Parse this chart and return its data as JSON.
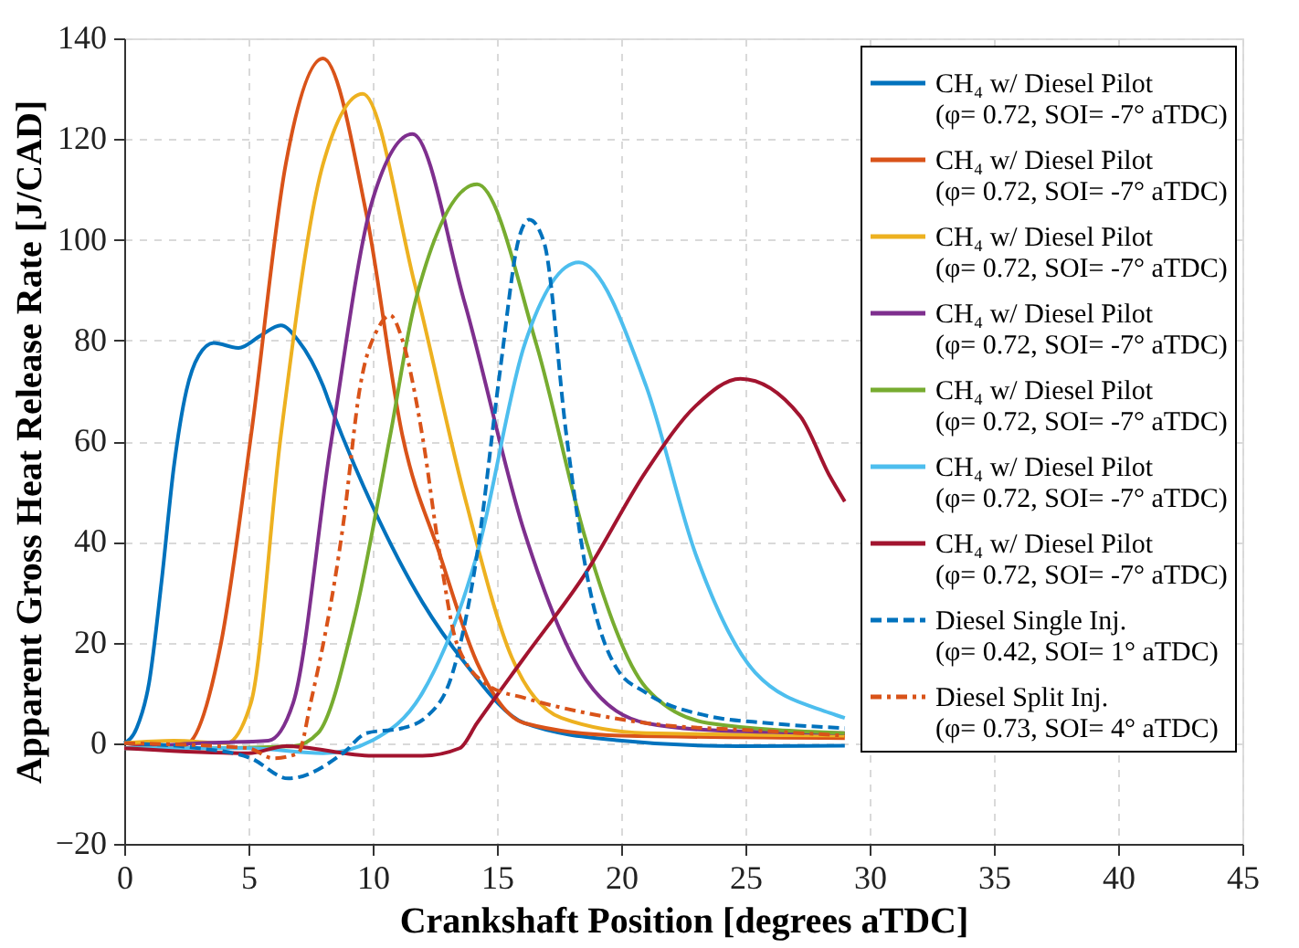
{
  "chart_data": {
    "type": "line",
    "xlabel": "Crankshaft Position [degrees aTDC]",
    "ylabel": "Apparent Gross Heat Release Rate [J/CAD]",
    "xlim": [
      0,
      45
    ],
    "xticks": [
      0,
      5,
      10,
      15,
      20,
      25,
      30,
      35,
      40,
      45
    ],
    "ylim": [
      -20,
      140
    ],
    "yticks": [
      -20,
      0,
      20,
      40,
      60,
      80,
      100,
      120,
      140
    ],
    "grid": true,
    "legend": "top right",
    "marker": "none",
    "series": [
      {
        "name": "CH₄ w/ Diesel Pilot\n(φ= 0.72, SOI= -7° aTDC)",
        "color": "#0072bd",
        "line_style": "solid",
        "x": [
          0,
          0.5,
          1,
          1.5,
          2,
          2.5,
          3,
          3.6,
          4.6,
          5.5,
          6.3,
          7,
          8,
          8.3,
          10,
          12,
          13.7,
          16.1,
          19.8,
          24.7,
          29
        ],
        "values": [
          0,
          3,
          12,
          32,
          55,
          70,
          77,
          79.5,
          78.5,
          81,
          83,
          80,
          71,
          67,
          47,
          28,
          16,
          4,
          0.6,
          -0.6,
          -0.5
        ]
      },
      {
        "name": "CH₄ w/ Diesel Pilot\n(φ= 0.72, SOI= -7° aTDC)",
        "color": "#d95319",
        "line_style": "solid",
        "x": [
          0,
          1,
          2,
          2.6,
          3.9,
          5.1,
          6.5,
          8,
          9.75,
          11.2,
          12.7,
          14.2,
          16.1,
          20,
          29
        ],
        "values": [
          0,
          -0.5,
          -1,
          0,
          20,
          61,
          115,
          136,
          105,
          61,
          37.5,
          16,
          4,
          1.5,
          1
        ]
      },
      {
        "name": "CH₄ w/ Diesel Pilot\n(φ= 0.72, SOI= -7° aTDC)",
        "color": "#edb120",
        "line_style": "solid",
        "x": [
          0,
          2,
          4.1,
          5.1,
          6.3,
          8,
          9.6,
          11.7,
          13.7,
          15.6,
          17.6,
          21,
          29
        ],
        "values": [
          0,
          0.5,
          0,
          8,
          61,
          115,
          129,
          91,
          49,
          17,
          5,
          2,
          1.5
        ]
      },
      {
        "name": "CH₄ w/ Diesel Pilot\n(φ= 0.72, SOI= -7° aTDC)",
        "color": "#7e2f8e",
        "line_style": "solid",
        "x": [
          0,
          3,
          5.8,
          6.8,
          8.3,
          10,
          11.6,
          13.7,
          16.1,
          18.6,
          21,
          24,
          29
        ],
        "values": [
          -1,
          0,
          0.5,
          8,
          59,
          108,
          121,
          87.5,
          42,
          12.5,
          4,
          2.5,
          2
        ]
      },
      {
        "name": "CH₄ w/ Diesel Pilot\n(φ= 0.72, SOI= -7° aTDC)",
        "color": "#77ac30",
        "line_style": "solid",
        "x": [
          0,
          3,
          6.8,
          7.8,
          9.3,
          10.7,
          11.7,
          14.2,
          16.6,
          18.6,
          21,
          23.5,
          29
        ],
        "values": [
          -1,
          -1,
          -0.6,
          2,
          25.6,
          61,
          87.5,
          111,
          79,
          40,
          11,
          4,
          2
        ]
      },
      {
        "name": "CH₄ w/ Diesel Pilot\n(φ= 0.72, SOI= -7° aTDC)",
        "color": "#4dbeee",
        "line_style": "solid",
        "x": [
          0,
          5,
          8,
          10,
          12,
          14.2,
          16.1,
          18.3,
          21,
          23,
          25.4,
          28.4,
          29
        ],
        "values": [
          -1,
          -1,
          -2,
          0.6,
          10,
          37.5,
          79,
          95.5,
          71,
          37.5,
          14,
          6,
          5
        ]
      },
      {
        "name": "CH₄ w/ Diesel Pilot\n(φ= 0.72, SOI= -7° aTDC)",
        "color": "#a2142f",
        "line_style": "solid",
        "x": [
          0,
          5,
          6.5,
          10,
          12,
          13.5,
          14.2,
          16.1,
          18.6,
          21,
          23,
          24.8,
          27.2,
          28.4,
          29
        ],
        "values": [
          -1,
          -2,
          -0.6,
          -2.5,
          -2.5,
          -1,
          4,
          17,
          34,
          54,
          67,
          72.4,
          65,
          53,
          48
        ]
      },
      {
        "name": "Diesel Single Inj.\n(φ= 0.42, SOI= 1° aTDC)",
        "color": "#0072bd",
        "line_style": "dashed",
        "x": [
          0,
          3,
          5.1,
          6.6,
          8.8,
          9.75,
          11.2,
          12.2,
          13.2,
          14.2,
          15.1,
          15.9,
          16.3,
          16.9,
          17.8,
          18.6,
          19.8,
          21,
          23.5,
          25.9,
          29
        ],
        "values": [
          0,
          -1,
          -3,
          -7,
          -2,
          2,
          3,
          5.4,
          13.7,
          37.5,
          73,
          100.6,
          104,
          99.4,
          61,
          34,
          15,
          10,
          5.4,
          4,
          3
        ]
      },
      {
        "name": "Diesel Split Inj.\n(φ= 0.73, SOI= 4° aTDC)",
        "color": "#d95319",
        "line_style": "dashdot",
        "x": [
          0,
          5,
          6,
          7,
          7.5,
          8.8,
          9.5,
          10.25,
          10.7,
          11.2,
          12,
          12.7,
          13.4,
          14.7,
          16.1,
          18.6,
          21,
          25.9,
          29
        ],
        "values": [
          0,
          -1,
          -3,
          -2,
          8,
          43,
          71,
          82.7,
          85,
          80,
          61,
          37.5,
          19.6,
          11.3,
          9,
          6,
          4,
          2.4,
          1.5
        ]
      }
    ]
  }
}
